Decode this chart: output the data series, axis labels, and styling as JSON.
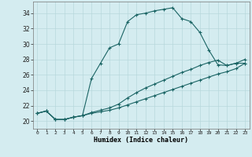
{
  "bg_color": "#d4ecf0",
  "grid_color": "#b8d8dc",
  "line_color": "#1a6464",
  "xlabel": "Humidex (Indice chaleur)",
  "xlim": [
    -0.5,
    23.5
  ],
  "ylim": [
    19.0,
    35.5
  ],
  "xticks": [
    0,
    1,
    2,
    3,
    4,
    5,
    6,
    7,
    8,
    9,
    10,
    11,
    12,
    13,
    14,
    15,
    16,
    17,
    18,
    19,
    20,
    21,
    22,
    23
  ],
  "yticks": [
    20,
    22,
    24,
    26,
    28,
    30,
    32,
    34
  ],
  "line1_x": [
    0,
    1,
    2,
    3,
    4,
    5,
    6,
    7,
    8,
    9,
    10,
    11,
    12,
    13,
    14,
    15,
    16,
    17,
    18,
    19,
    20,
    21,
    22,
    23
  ],
  "line1_y": [
    21.0,
    21.3,
    20.2,
    20.2,
    20.5,
    20.7,
    25.5,
    27.5,
    29.5,
    30.0,
    32.9,
    33.8,
    34.0,
    34.3,
    34.5,
    34.7,
    33.3,
    32.9,
    31.5,
    29.2,
    27.3,
    27.2,
    27.5,
    27.5
  ],
  "line2_x": [
    0,
    1,
    2,
    3,
    4,
    5,
    6,
    7,
    8,
    9,
    10,
    11,
    12,
    13,
    14,
    15,
    16,
    17,
    18,
    19,
    20,
    21,
    22,
    23
  ],
  "line2_y": [
    21.0,
    21.3,
    20.2,
    20.2,
    20.5,
    20.7,
    21.1,
    21.4,
    21.7,
    22.2,
    23.0,
    23.7,
    24.3,
    24.8,
    25.3,
    25.8,
    26.3,
    26.7,
    27.2,
    27.6,
    27.9,
    27.2,
    27.5,
    28.0
  ],
  "line3_x": [
    0,
    1,
    2,
    3,
    4,
    5,
    6,
    7,
    8,
    9,
    10,
    11,
    12,
    13,
    14,
    15,
    16,
    17,
    18,
    19,
    20,
    21,
    22,
    23
  ],
  "line3_y": [
    21.0,
    21.3,
    20.2,
    20.2,
    20.5,
    20.7,
    21.0,
    21.2,
    21.4,
    21.7,
    22.1,
    22.5,
    22.9,
    23.3,
    23.7,
    24.1,
    24.5,
    24.9,
    25.3,
    25.7,
    26.1,
    26.4,
    26.8,
    27.5
  ]
}
